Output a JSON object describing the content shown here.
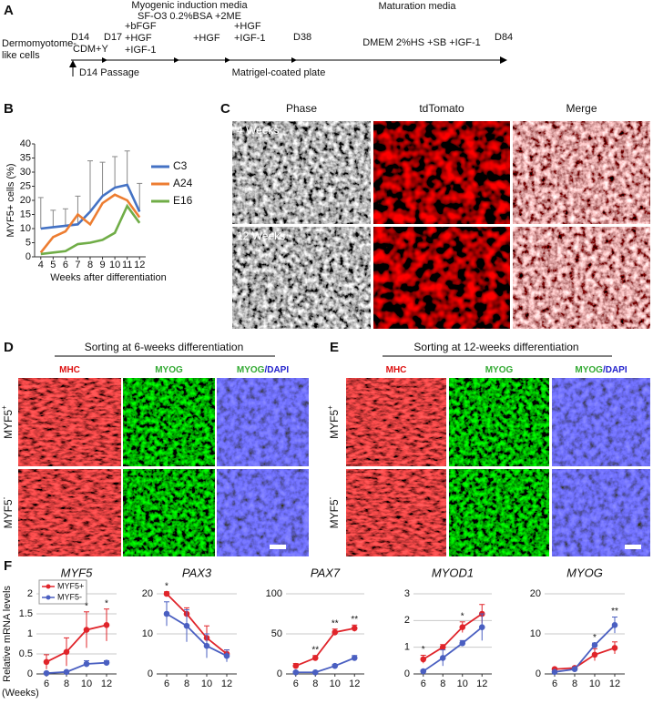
{
  "panel_a": {
    "label": "A",
    "texts": [
      "Dermomyotome-",
      "like cells",
      "D14",
      "CDM+Y",
      "D17",
      "Myogenic induction media",
      "SF-O3 0.2%BSA +2ME",
      "+bFGF",
      "+HGF",
      "+IGF-1",
      "+HGF",
      "+HGF",
      "+IGF-1",
      "D38",
      "Maturation media",
      "DMEM 2%HS +SB +IGF-1",
      "D84",
      "D14 Passage",
      "Matrigel-coated plate"
    ]
  },
  "panel_b": {
    "label": "B"
  },
  "panel_c": {
    "label": "C",
    "columns": [
      "Phase",
      "tdTomato",
      "Merge"
    ],
    "rows": [
      "4 Weeks",
      "12 Weeks"
    ]
  },
  "panel_d": {
    "label": "D",
    "title": "Sorting at 6-weeks differentiation",
    "columns": [
      [
        "MHC"
      ],
      [
        "MYOG"
      ],
      [
        "MYOG",
        "/DAPI"
      ]
    ],
    "rows": [
      [
        "MYF5",
        "+"
      ],
      [
        "MYF5",
        "-"
      ]
    ]
  },
  "panel_e": {
    "label": "E",
    "title": "Sorting at 12-weeks differentiation",
    "columns": [
      [
        "MHC"
      ],
      [
        "MYOG"
      ],
      [
        "MYOG",
        "/DAPI"
      ]
    ],
    "rows": [
      [
        "MYF5",
        "+"
      ],
      [
        "MYF5",
        "-"
      ]
    ]
  },
  "panel_f": {
    "label": "F"
  },
  "chart_data": [
    {
      "type": "line",
      "xlabel": "Weeks after differentiation",
      "ylabel": "MYF5+ cells (%)",
      "x": [
        4,
        5,
        6,
        7,
        8,
        9,
        10,
        11,
        12
      ],
      "xlim": [
        3.5,
        12.5
      ],
      "xticks": [
        4,
        5,
        6,
        7,
        8,
        9,
        10,
        11,
        12
      ],
      "ylim": [
        0,
        40
      ],
      "yticks": [
        0,
        5,
        10,
        15,
        20,
        25,
        30,
        35,
        40
      ],
      "grid": false,
      "legend": "right",
      "series": [
        {
          "name": "C3",
          "color": "#4472c4",
          "values": [
            10,
            10.5,
            11,
            11.5,
            16,
            21.5,
            24.5,
            25.5,
            16
          ],
          "errors": [
            11,
            6,
            6,
            10,
            18,
            12,
            11,
            12,
            10
          ]
        },
        {
          "name": "A24",
          "color": "#ed7d31",
          "values": [
            1.5,
            7,
            9,
            15,
            11.5,
            19,
            22,
            20,
            14
          ]
        },
        {
          "name": "E16",
          "color": "#70ad47",
          "values": [
            1,
            1.5,
            2,
            4.5,
            5,
            6,
            8.5,
            18,
            12
          ]
        }
      ]
    },
    {
      "type": "line",
      "title": "MYF5",
      "ylabel": "Relative mRNA levels",
      "xlabel": "(Weeks)",
      "x": [
        6,
        8,
        10,
        12
      ],
      "xlim": [
        5,
        13
      ],
      "xticks": [
        6,
        8,
        10,
        12
      ],
      "ylim": [
        0,
        2
      ],
      "yticks": [
        0,
        0.5,
        1,
        1.5,
        2
      ],
      "grid": true,
      "legend": "upper left",
      "series": [
        {
          "name": "MYF5+",
          "color": "#e0242a",
          "values": [
            0.3,
            0.55,
            1.1,
            1.22
          ],
          "errors": [
            0.18,
            0.35,
            0.45,
            0.4
          ]
        },
        {
          "name": "MYF5-",
          "color": "#4a5fc1",
          "values": [
            0.02,
            0.05,
            0.25,
            0.28
          ],
          "errors": [
            0.02,
            0.03,
            0.08,
            0.05
          ]
        }
      ],
      "annotations": [
        {
          "x": 10,
          "text": "*"
        },
        {
          "x": 12,
          "text": "*"
        }
      ]
    },
    {
      "type": "line",
      "title": "PAX3",
      "x": [
        6,
        8,
        10,
        12
      ],
      "xlim": [
        5,
        13
      ],
      "xticks": [
        6,
        8,
        10,
        12
      ],
      "ylim": [
        0,
        20
      ],
      "yticks": [
        0,
        10,
        20
      ],
      "grid": true,
      "series": [
        {
          "color": "#e0242a",
          "values": [
            20,
            15,
            9,
            5
          ],
          "errors": [
            0.5,
            1.5,
            3,
            1
          ]
        },
        {
          "color": "#4a5fc1",
          "values": [
            15,
            12,
            7,
            4.5
          ],
          "errors": [
            3,
            4,
            3,
            1.5
          ]
        }
      ],
      "annotations": [
        {
          "x": 6,
          "text": "*"
        }
      ]
    },
    {
      "type": "line",
      "title": "PAX7",
      "x": [
        6,
        8,
        10,
        12
      ],
      "xlim": [
        5,
        13
      ],
      "xticks": [
        6,
        8,
        10,
        12
      ],
      "ylim": [
        0,
        100
      ],
      "yticks": [
        0,
        50,
        100
      ],
      "grid": true,
      "series": [
        {
          "color": "#e0242a",
          "values": [
            10,
            20,
            52,
            57
          ],
          "errors": [
            3,
            3,
            4,
            4
          ]
        },
        {
          "color": "#4a5fc1",
          "values": [
            2,
            2,
            10,
            20
          ],
          "errors": [
            1,
            1,
            2,
            3
          ]
        }
      ],
      "annotations": [
        {
          "x": 8,
          "text": "**"
        },
        {
          "x": 10,
          "text": "**"
        },
        {
          "x": 12,
          "text": "**"
        }
      ]
    },
    {
      "type": "line",
      "title": "MYOD1",
      "x": [
        6,
        8,
        10,
        12
      ],
      "xlim": [
        5,
        13
      ],
      "xticks": [
        6,
        8,
        10,
        12
      ],
      "ylim": [
        0,
        3
      ],
      "yticks": [
        0,
        1,
        2,
        3
      ],
      "grid": true,
      "series": [
        {
          "color": "#e0242a",
          "values": [
            0.55,
            1.0,
            1.75,
            2.25
          ],
          "errors": [
            0.15,
            0.1,
            0.2,
            0.35
          ]
        },
        {
          "color": "#4a5fc1",
          "values": [
            0.1,
            0.6,
            1.15,
            1.75
          ],
          "errors": [
            0.05,
            0.3,
            0.1,
            0.5
          ]
        }
      ],
      "annotations": [
        {
          "x": 6,
          "text": "*"
        },
        {
          "x": 10,
          "text": "*"
        }
      ]
    },
    {
      "type": "line",
      "title": "MYOG",
      "x": [
        6,
        8,
        10,
        12
      ],
      "xlim": [
        5,
        13
      ],
      "xticks": [
        6,
        8,
        10,
        12
      ],
      "ylim": [
        0,
        20
      ],
      "yticks": [
        0,
        10,
        20
      ],
      "grid": true,
      "series": [
        {
          "color": "#e0242a",
          "values": [
            1.2,
            1.5,
            4.8,
            6.5
          ],
          "errors": [
            0.3,
            0.3,
            1.5,
            1.5
          ]
        },
        {
          "color": "#4a5fc1",
          "values": [
            0.5,
            1.2,
            7.2,
            12.2
          ],
          "errors": [
            0.2,
            0.3,
            0.5,
            2
          ]
        }
      ],
      "annotations": [
        {
          "x": 10,
          "text": "*"
        },
        {
          "x": 12,
          "text": "**"
        }
      ]
    }
  ]
}
